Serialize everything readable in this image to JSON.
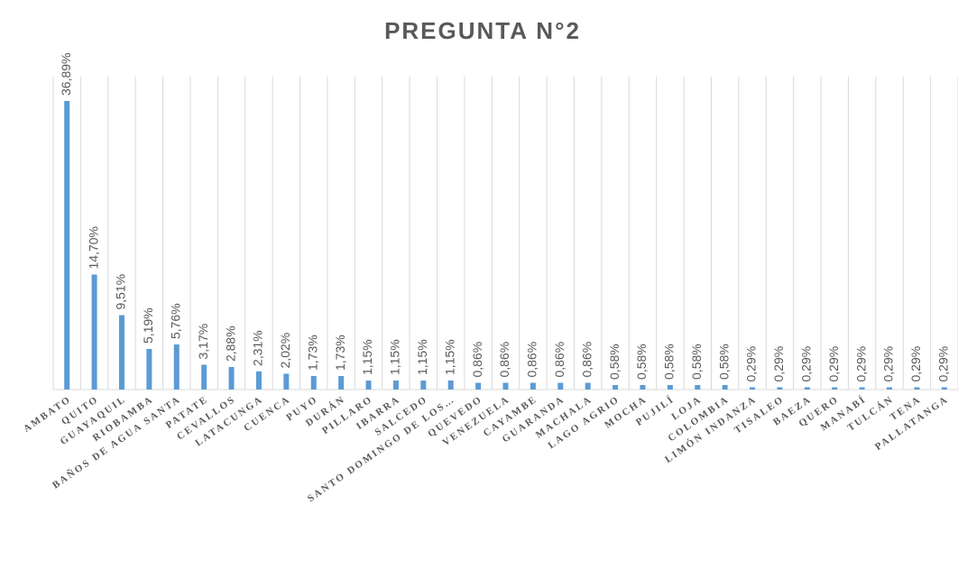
{
  "chart_data": {
    "type": "bar",
    "title": "PREGUNTA N°2",
    "categories": [
      "AMBATO",
      "QUITO",
      "GUAYAQUIL",
      "RIOBAMBA",
      "BAÑOS DE AGUA SANTA",
      "PATATE",
      "CEVALLOS",
      "LATACUNGA",
      "CUENCA",
      "PUYO",
      "DURÁN",
      "PILLARO",
      "IBARRA",
      "SALCEDO",
      "SANTO DOMINGO DE LOS…",
      "QUEVEDO",
      "VENEZUELA",
      "CAYAMBE",
      "GUARANDA",
      "MACHALA",
      "LAGO AGRIO",
      "MOCHA",
      "PUJILÍ",
      "LOJA",
      "COLOMBIA",
      "LIMÓN INDANZA",
      "TISALEO",
      "BAEZA",
      "QUERO",
      "MANABÍ",
      "TULCÁN",
      "TENA",
      "PALLATANGA"
    ],
    "values": [
      36.89,
      14.7,
      9.51,
      5.19,
      5.76,
      3.17,
      2.88,
      2.31,
      2.02,
      1.73,
      1.73,
      1.15,
      1.15,
      1.15,
      1.15,
      0.86,
      0.86,
      0.86,
      0.86,
      0.86,
      0.58,
      0.58,
      0.58,
      0.58,
      0.58,
      0.29,
      0.29,
      0.29,
      0.29,
      0.29,
      0.29,
      0.29,
      0.29
    ],
    "value_labels": [
      "36,89%",
      "14,70%",
      "9,51%",
      "5,19%",
      "5,76%",
      "3,17%",
      "2,88%",
      "2,31%",
      "2,02%",
      "1,73%",
      "1,73%",
      "1,15%",
      "1,15%",
      "1,15%",
      "1,15%",
      "0,86%",
      "0,86%",
      "0,86%",
      "0,86%",
      "0,86%",
      "0,58%",
      "0,58%",
      "0,58%",
      "0,58%",
      "0,58%",
      "0,29%",
      "0,29%",
      "0,29%",
      "0,29%",
      "0,29%",
      "0,29%",
      "0,29%",
      "0,29%"
    ],
    "color": "#5b9bd5",
    "ylim": [
      0,
      40
    ],
    "grid": true
  }
}
